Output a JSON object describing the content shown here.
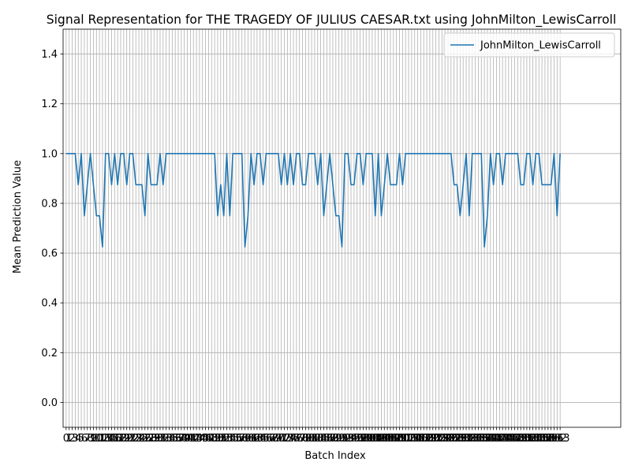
{
  "chart_data": {
    "type": "line",
    "title": "Signal Representation for THE TRAGEDY OF JULIUS CAESAR.txt using JohnMilton_LewisCarroll",
    "xlabel": "Batch Index",
    "ylabel": "Mean Prediction Value",
    "ylim": [
      -0.1,
      1.5
    ],
    "yticks": [
      0.0,
      0.2,
      0.4,
      0.6,
      0.8,
      1.0,
      1.2,
      1.4
    ],
    "xlim": [
      -1,
      183
    ],
    "grid": true,
    "legend_position": "top-right",
    "series": [
      {
        "name": "JohnMilton_LewisCarroll",
        "color": "#1f77b4",
        "values": [
          1.0,
          1.0,
          1.0,
          1.0,
          0.875,
          1.0,
          0.75,
          0.875,
          1.0,
          0.875,
          0.75,
          0.75,
          0.625,
          1.0,
          1.0,
          0.875,
          1.0,
          0.875,
          1.0,
          1.0,
          0.875,
          1.0,
          1.0,
          0.875,
          0.875,
          0.875,
          0.75,
          1.0,
          0.875,
          0.875,
          0.875,
          1.0,
          0.875,
          1.0,
          1.0,
          1.0,
          1.0,
          1.0,
          1.0,
          1.0,
          1.0,
          1.0,
          1.0,
          1.0,
          1.0,
          1.0,
          1.0,
          1.0,
          1.0,
          1.0,
          0.75,
          0.875,
          0.75,
          1.0,
          0.75,
          1.0,
          1.0,
          1.0,
          1.0,
          0.625,
          0.75,
          1.0,
          0.875,
          1.0,
          1.0,
          0.875,
          1.0,
          1.0,
          1.0,
          1.0,
          1.0,
          0.875,
          1.0,
          0.875,
          1.0,
          0.875,
          1.0,
          1.0,
          0.875,
          0.875,
          1.0,
          1.0,
          1.0,
          0.875,
          1.0,
          0.75,
          0.875,
          1.0,
          0.875,
          0.75,
          0.75,
          0.625,
          1.0,
          1.0,
          0.875,
          0.875,
          1.0,
          1.0,
          0.875,
          1.0,
          1.0,
          1.0,
          0.75,
          1.0,
          0.75,
          0.875,
          1.0,
          0.875,
          0.875,
          0.875,
          1.0,
          0.875,
          1.0,
          1.0,
          1.0,
          1.0,
          1.0,
          1.0,
          1.0,
          1.0,
          1.0,
          1.0,
          1.0,
          1.0,
          1.0,
          1.0,
          1.0,
          1.0,
          0.875,
          0.875,
          0.75,
          0.875,
          1.0,
          0.75,
          1.0,
          1.0,
          1.0,
          1.0,
          0.625,
          0.75,
          1.0,
          0.875,
          1.0,
          1.0,
          0.875,
          1.0,
          1.0,
          1.0,
          1.0,
          1.0,
          0.875,
          0.875,
          1.0,
          1.0,
          0.875,
          1.0,
          1.0,
          0.875,
          0.875,
          0.875,
          0.875,
          1.0,
          0.75,
          1.0
        ]
      }
    ]
  }
}
